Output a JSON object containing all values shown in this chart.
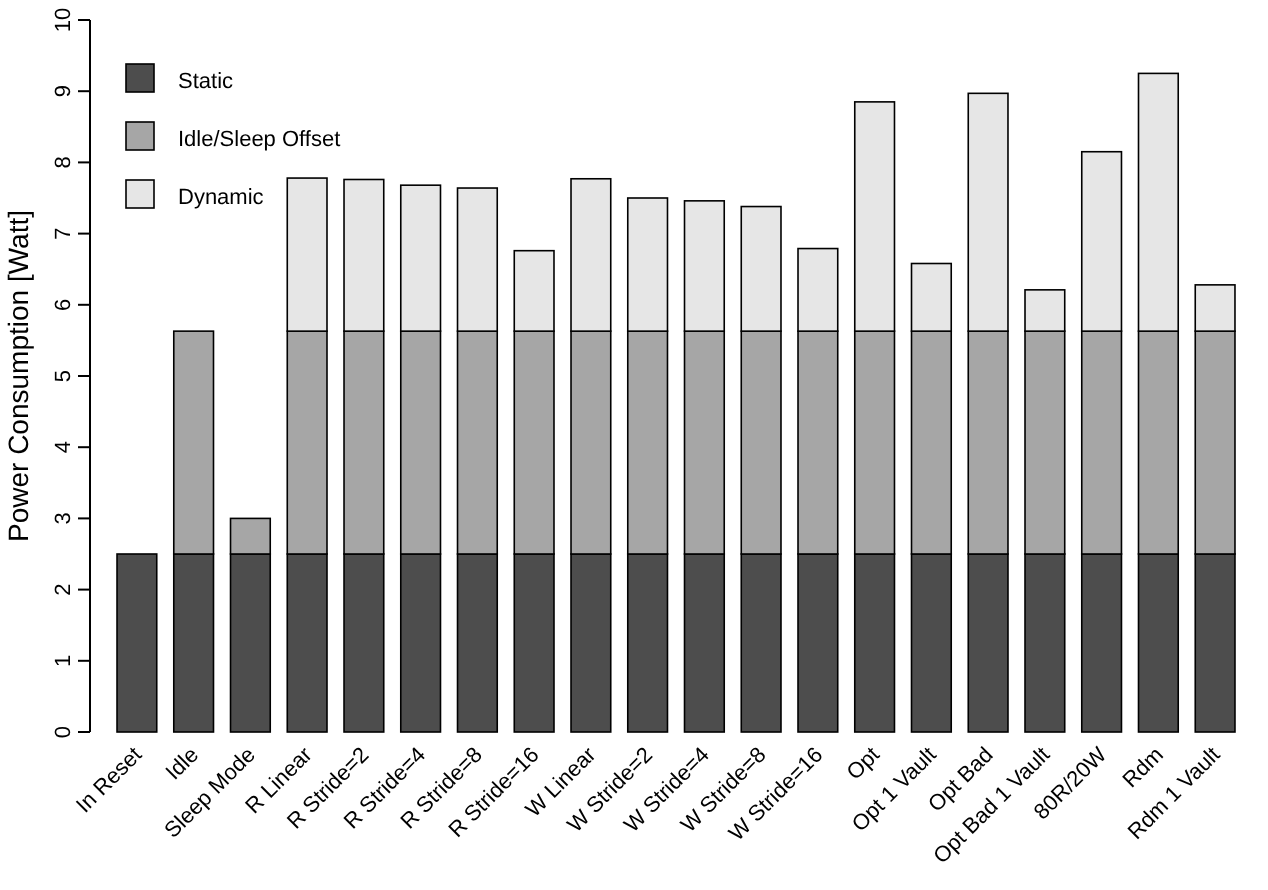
{
  "chart_data": {
    "type": "bar",
    "stacked": true,
    "ylabel": "Power Consumption [Watt]",
    "legend": "top left",
    "grid": false,
    "categories": [
      "In Reset",
      "Idle",
      "Sleep Mode",
      "R Linear",
      "R Stride=2",
      "R Stride=4",
      "R Stride=8",
      "R Stride=16",
      "W Linear",
      "W Stride=2",
      "W Stride=4",
      "W Stride=8",
      "W Stride=16",
      "Opt",
      "Opt 1 Vault",
      "Opt Bad",
      "Opt Bad 1 Vault",
      "80R/20W",
      "Rdm",
      "Rdm 1 Vault"
    ],
    "ylim": [
      0,
      10
    ],
    "yticks": [
      0,
      1,
      2,
      3,
      4,
      5,
      6,
      7,
      8,
      9,
      10
    ],
    "series": [
      {
        "name": "Static",
        "color": "#4d4d4d",
        "values": [
          2.5,
          2.5,
          2.5,
          2.5,
          2.5,
          2.5,
          2.5,
          2.5,
          2.5,
          2.5,
          2.5,
          2.5,
          2.5,
          2.5,
          2.5,
          2.5,
          2.5,
          2.5,
          2.5,
          2.5
        ]
      },
      {
        "name": "Idle/Sleep Offset",
        "color": "#a6a6a6",
        "values": [
          0,
          3.13,
          0.5,
          3.13,
          3.13,
          3.13,
          3.13,
          3.13,
          3.13,
          3.13,
          3.13,
          3.13,
          3.13,
          3.13,
          3.13,
          3.13,
          3.13,
          3.13,
          3.13,
          3.13
        ]
      },
      {
        "name": "Dynamic",
        "color": "#e6e6e6",
        "values": [
          0,
          0,
          0,
          2.15,
          2.13,
          2.05,
          2.01,
          1.13,
          2.14,
          1.87,
          1.83,
          1.75,
          1.16,
          3.22,
          0.95,
          3.34,
          0.58,
          2.52,
          3.62,
          0.65
        ]
      }
    ]
  }
}
